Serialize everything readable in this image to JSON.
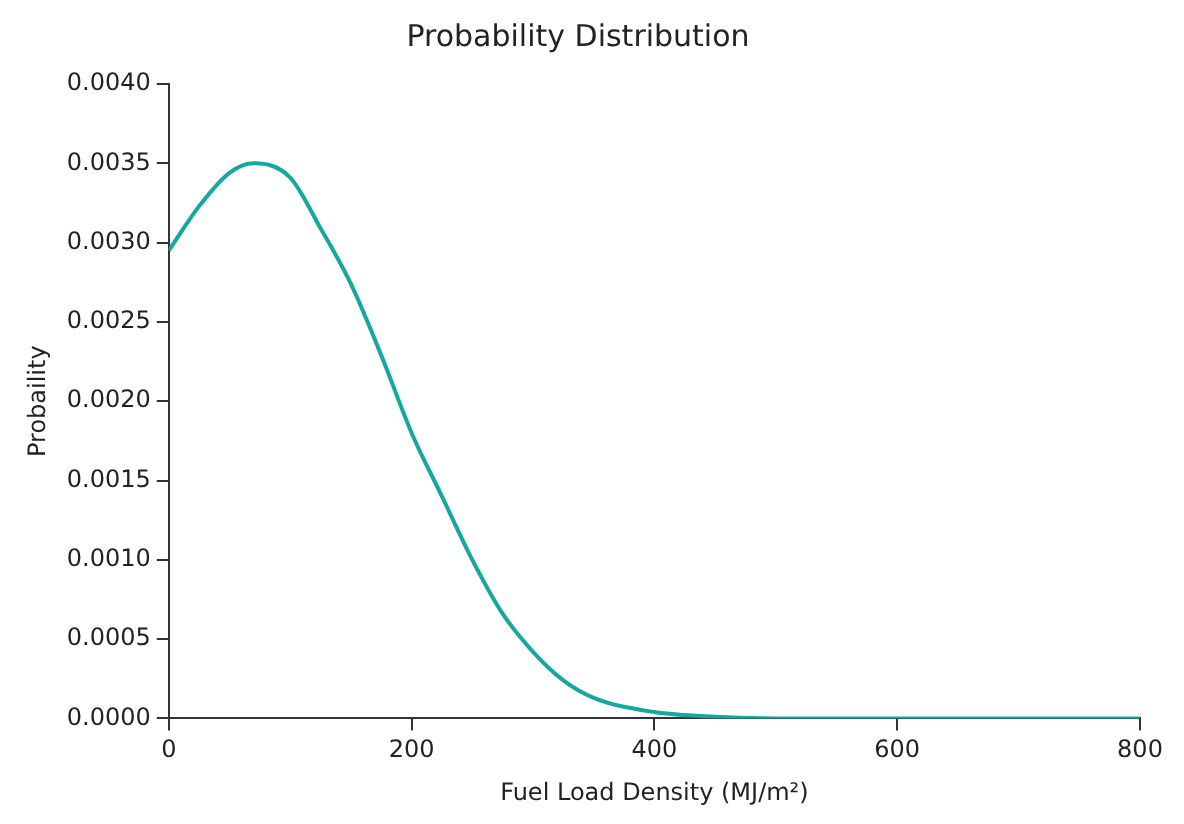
{
  "chart_data": {
    "type": "line",
    "title": "Probability Distribution",
    "xlabel": "Fuel Load Density (MJ/m²)",
    "ylabel": "Probaility",
    "x": [
      0,
      25,
      50,
      70,
      100,
      125,
      150,
      175,
      200,
      225,
      250,
      275,
      300,
      325,
      350,
      400,
      450,
      500,
      600,
      700,
      800
    ],
    "series": [
      {
        "color": "#14a89e",
        "values": [
          0.00295,
          0.00323,
          0.00344,
          0.0035,
          0.00341,
          0.00309,
          0.00274,
          0.00229,
          0.0018,
          0.0014,
          0.001,
          0.00066,
          0.00042,
          0.00024,
          0.00013,
          4e-05,
          1e-05,
          0,
          0,
          0,
          0
        ]
      }
    ],
    "xlim": [
      0,
      800
    ],
    "xticks": [
      0,
      200,
      400,
      600,
      800
    ],
    "ylim": [
      0,
      0.004
    ],
    "yticks": [
      {
        "value": 0,
        "label": "0.0000"
      },
      {
        "value": 0.0005,
        "label": "0.0005"
      },
      {
        "value": 0.001,
        "label": "0.0010"
      },
      {
        "value": 0.0015,
        "label": "0.0015"
      },
      {
        "value": 0.002,
        "label": "0.0020"
      },
      {
        "value": 0.0025,
        "label": "0.0025"
      },
      {
        "value": 0.003,
        "label": "0.0030"
      },
      {
        "value": 0.0035,
        "label": "0.0035"
      },
      {
        "value": 0.004,
        "label": "0.0040"
      }
    ],
    "grid": false,
    "legend": false,
    "marker": "none",
    "line_style": "solid"
  }
}
